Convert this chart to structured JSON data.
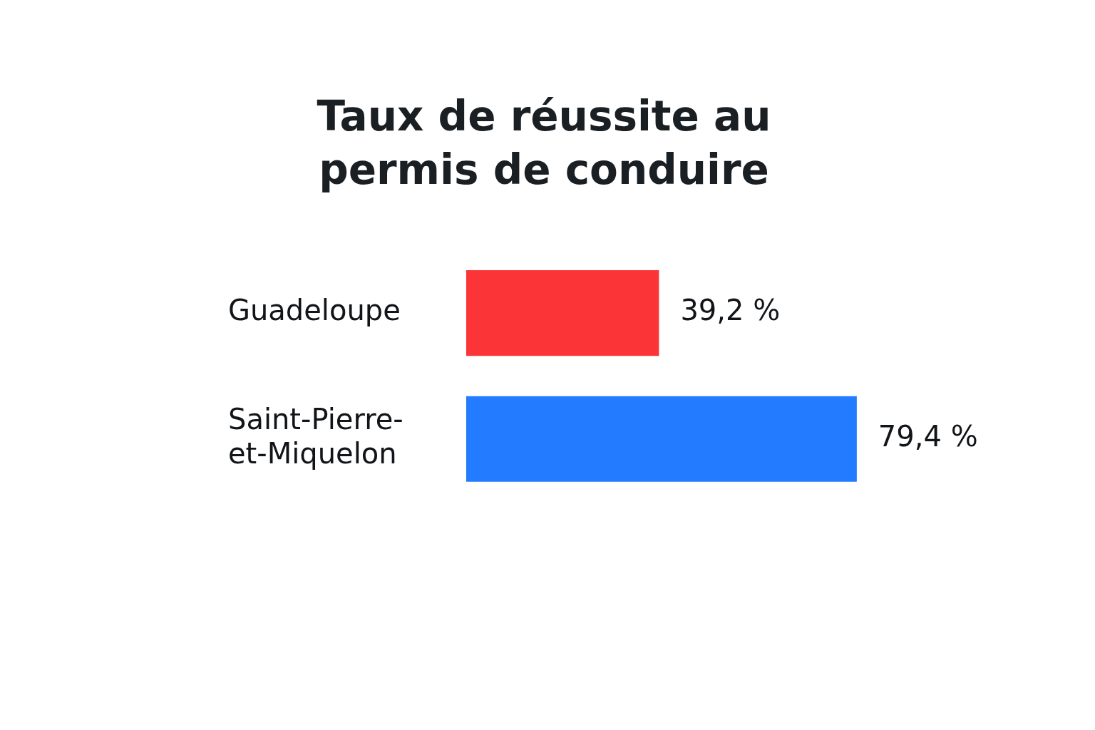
{
  "chart_data": {
    "type": "bar",
    "orientation": "horizontal",
    "title": "Taux de réussite au permis de conduire",
    "categories": [
      "Guadeloupe",
      "Saint-Pierre-et-Miquelon"
    ],
    "values": [
      39.2,
      79.4
    ],
    "colors": [
      "#fb3537",
      "#237bff"
    ],
    "value_labels": [
      "39,2 %",
      "79,4 %"
    ],
    "tick_labels": "y",
    "grid": false,
    "legend": false
  }
}
